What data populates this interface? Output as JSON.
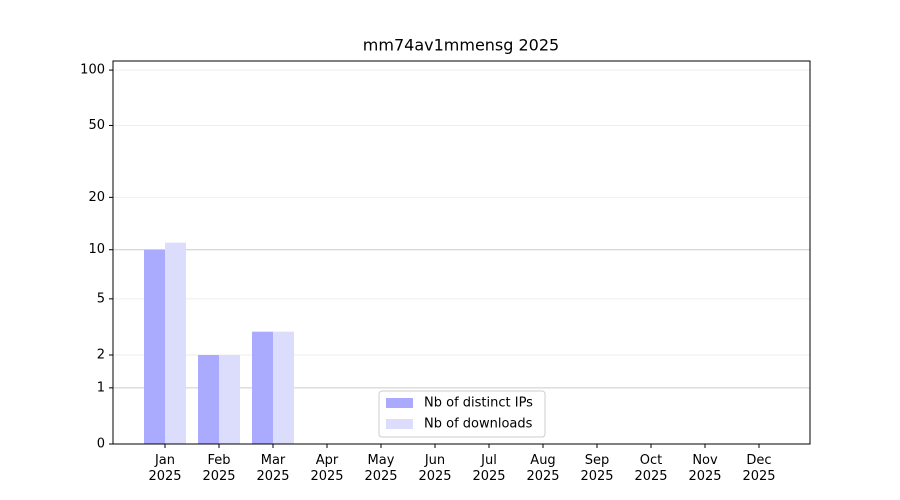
{
  "chart_data": {
    "type": "bar",
    "title": "mm74av1mmensg 2025",
    "categories": [
      "Jan\n2025",
      "Feb\n2025",
      "Mar\n2025",
      "Apr\n2025",
      "May\n2025",
      "Jun\n2025",
      "Jul\n2025",
      "Aug\n2025",
      "Sep\n2025",
      "Oct\n2025",
      "Nov\n2025",
      "Dec\n2025"
    ],
    "series": [
      {
        "name": "Nb of distinct IPs",
        "color": "#aaaaff",
        "values": [
          10,
          2,
          3,
          0,
          0,
          0,
          0,
          0,
          0,
          0,
          0,
          0
        ]
      },
      {
        "name": "Nb of downloads",
        "color": "#dcdcfd",
        "values": [
          11,
          2,
          3,
          0,
          0,
          0,
          0,
          0,
          0,
          0,
          0,
          0
        ]
      }
    ],
    "ylim": [
      0,
      112
    ],
    "yticks": [
      0,
      1,
      2,
      5,
      10,
      20,
      50,
      100
    ],
    "scale": "log1p",
    "grid": true,
    "legend": "lower center"
  }
}
